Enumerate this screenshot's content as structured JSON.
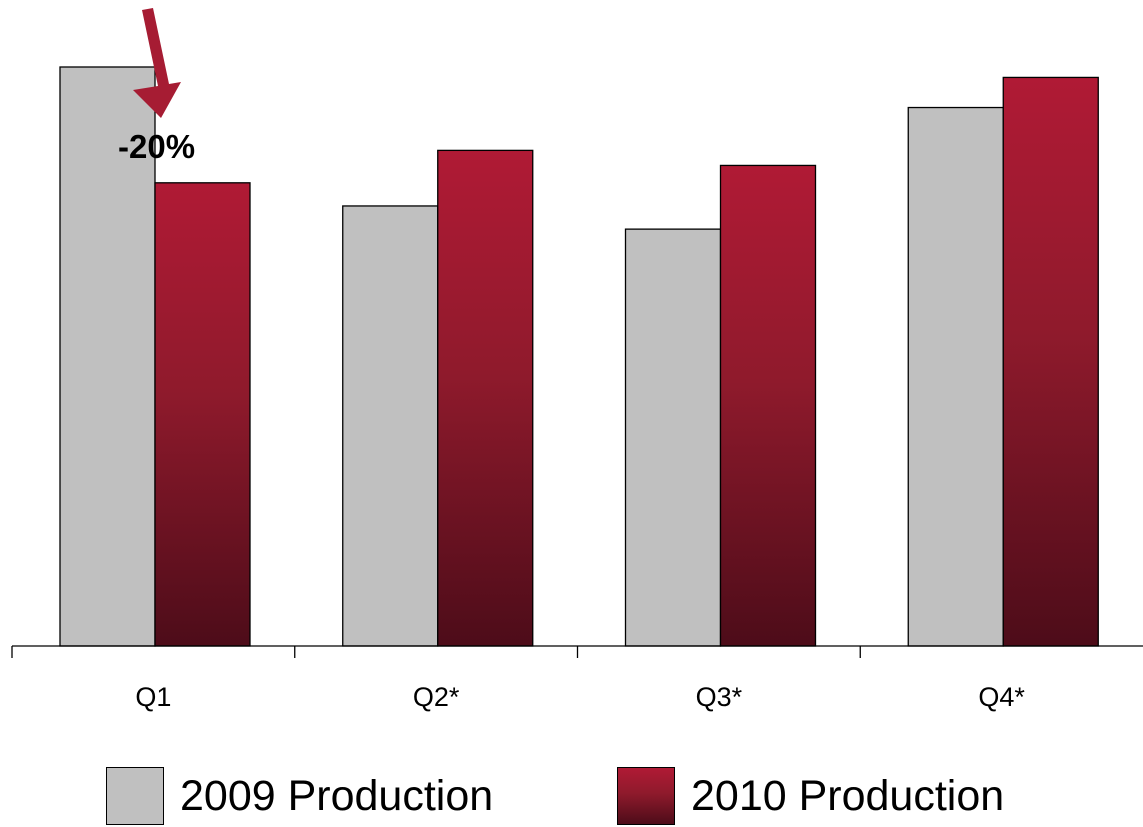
{
  "chart_data": {
    "type": "bar",
    "categories": [
      "Q1",
      "Q2*",
      "Q3*",
      "Q4*"
    ],
    "series": [
      {
        "name": "2009 Production",
        "values": [
          100,
          76,
          72,
          93
        ],
        "color": "#c0c0c0"
      },
      {
        "name": "2010 Production",
        "values": [
          80,
          85.6,
          83,
          98.2
        ],
        "color": "#b01a35",
        "color_dark": "#4d0c19"
      }
    ],
    "ylim": [
      0,
      100
    ],
    "grid": false,
    "legend_position": "bottom",
    "annotations": [
      {
        "text": "-20%",
        "category": "Q1",
        "arrow_color": "#a61c33"
      }
    ]
  }
}
